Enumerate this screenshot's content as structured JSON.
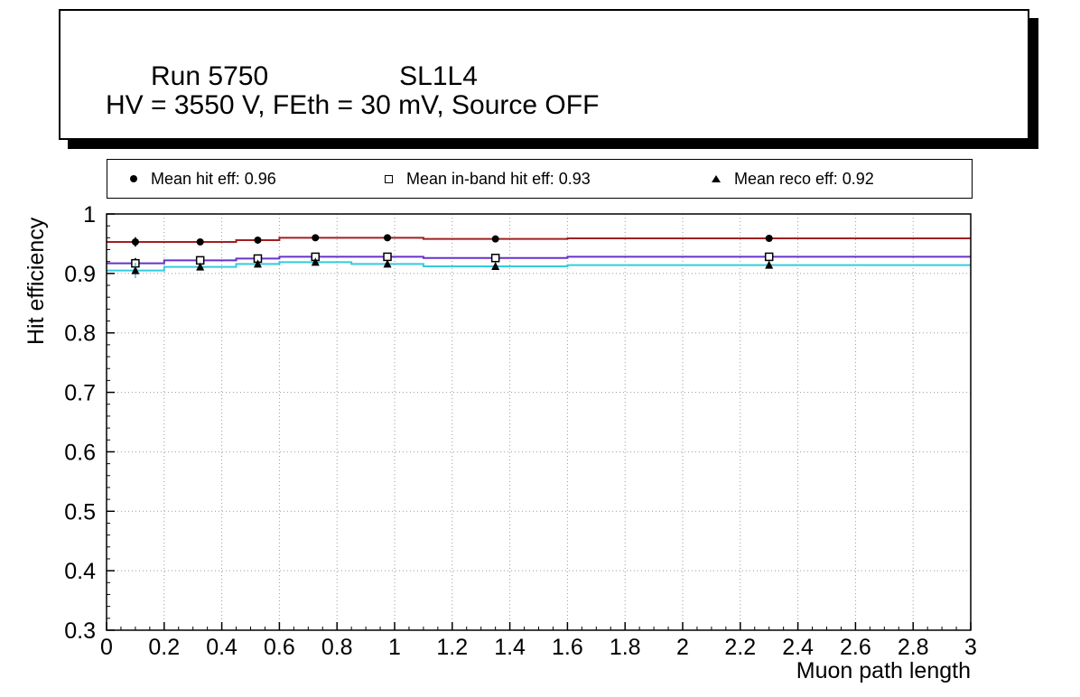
{
  "title": {
    "run": "Run 5750",
    "chamber": "SL1L4",
    "conditions": "HV = 3550 V, FEth = 30 mV, Source OFF"
  },
  "legend": {
    "entries": [
      {
        "marker": "filled-circle",
        "label": "Mean hit  eff: 0.96"
      },
      {
        "marker": "open-square",
        "label": "Mean in-band hit eff: 0.93"
      },
      {
        "marker": "filled-triangle",
        "label": "Mean reco eff: 0.92"
      }
    ]
  },
  "chart_data": {
    "type": "line",
    "title": "",
    "xlabel": "Muon path length",
    "ylabel": "Hit efficiency",
    "xlim": [
      0,
      3
    ],
    "ylim": [
      0.3,
      1.0
    ],
    "x_tick_step": 0.2,
    "y_tick_step": 0.1,
    "grid": true,
    "legend_position": "top",
    "x_ticks": [
      "0",
      "0.2",
      "0.4",
      "0.6",
      "0.8",
      "1",
      "1.2",
      "1.4",
      "1.6",
      "1.8",
      "2",
      "2.2",
      "2.4",
      "2.6",
      "2.8",
      "3"
    ],
    "y_ticks": [
      "0.3",
      "0.4",
      "0.5",
      "0.6",
      "0.7",
      "0.8",
      "0.9",
      "1"
    ],
    "bin_edges": [
      0,
      0.2,
      0.45,
      0.6,
      0.85,
      1.1,
      1.6,
      3
    ],
    "series": [
      {
        "name": "Mean hit eff",
        "mean": 0.96,
        "marker": "filled-circle",
        "marker_color": "#000000",
        "line_color": "#a02020",
        "error_color": "#000000",
        "values": [
          0.953,
          0.953,
          0.956,
          0.96,
          0.96,
          0.958,
          0.959
        ],
        "yerr": [
          0.008,
          0.005,
          0.004,
          0.003,
          0.003,
          0.004,
          0.005
        ]
      },
      {
        "name": "Mean in-band hit eff",
        "mean": 0.93,
        "marker": "open-square",
        "marker_color": "#000000",
        "line_color": "#6633cc",
        "error_color": "#000000",
        "values": [
          0.917,
          0.922,
          0.925,
          0.928,
          0.928,
          0.926,
          0.928
        ],
        "yerr": [
          0.009,
          0.005,
          0.004,
          0.003,
          0.003,
          0.004,
          0.005
        ]
      },
      {
        "name": "Mean reco eff",
        "mean": 0.92,
        "marker": "filled-triangle",
        "marker_color": "#000000",
        "line_color": "#33ccdd",
        "error_color": "#33ccdd",
        "values": [
          0.905,
          0.911,
          0.916,
          0.919,
          0.916,
          0.912,
          0.914
        ],
        "yerr": [
          0.013,
          0.006,
          0.005,
          0.004,
          0.004,
          0.005,
          0.006
        ]
      }
    ]
  }
}
